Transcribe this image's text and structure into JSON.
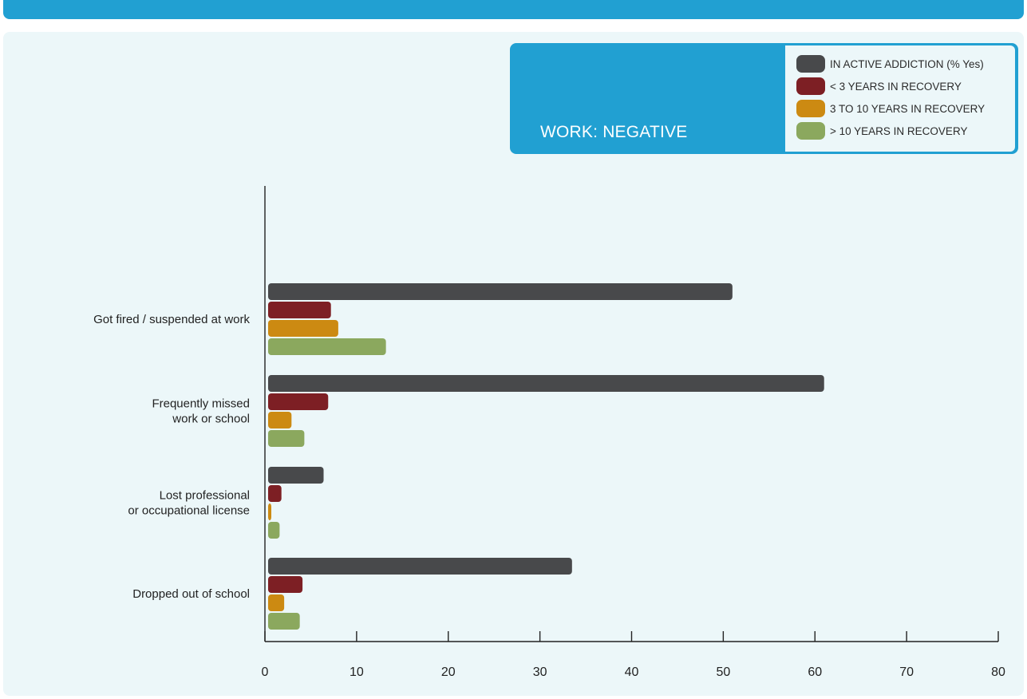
{
  "colors": {
    "header_band": "#21a0d2",
    "panel_bg": "#ecf7f9",
    "series": [
      "#48494b",
      "#7d1f24",
      "#cc8a12",
      "#8ba85e"
    ]
  },
  "legend": {
    "title": "WORK: NEGATIVE",
    "items": [
      "IN ACTIVE ADDICTION (% Yes)",
      "< 3 YEARS IN RECOVERY",
      "3 TO 10 YEARS IN RECOVERY",
      "> 10 YEARS IN RECOVERY"
    ]
  },
  "chart_data": {
    "type": "bar",
    "orientation": "horizontal",
    "title": "WORK: NEGATIVE",
    "categories": [
      [
        "Got fired / suspended at work"
      ],
      [
        "Frequently missed",
        "work or school"
      ],
      [
        "Lost professional",
        "or occupational license"
      ],
      [
        "Dropped out of school"
      ]
    ],
    "series": [
      {
        "name": "IN ACTIVE ADDICTION (% Yes)",
        "values": [
          51,
          61,
          6.4,
          33.5
        ]
      },
      {
        "name": "< 3 YEARS IN RECOVERY",
        "values": [
          7.2,
          6.9,
          1.8,
          4.1
        ]
      },
      {
        "name": "3 TO 10 YEARS IN RECOVERY",
        "values": [
          8,
          2.9,
          0.6,
          2.1
        ]
      },
      {
        "name": "> 10 YEARS IN RECOVERY",
        "values": [
          13.2,
          4.3,
          1.6,
          3.8
        ]
      }
    ],
    "xlim": [
      0,
      80
    ],
    "xticks": [
      0,
      10,
      20,
      30,
      40,
      50,
      60,
      70,
      80
    ],
    "grid": false,
    "legend_position": "top-right"
  }
}
